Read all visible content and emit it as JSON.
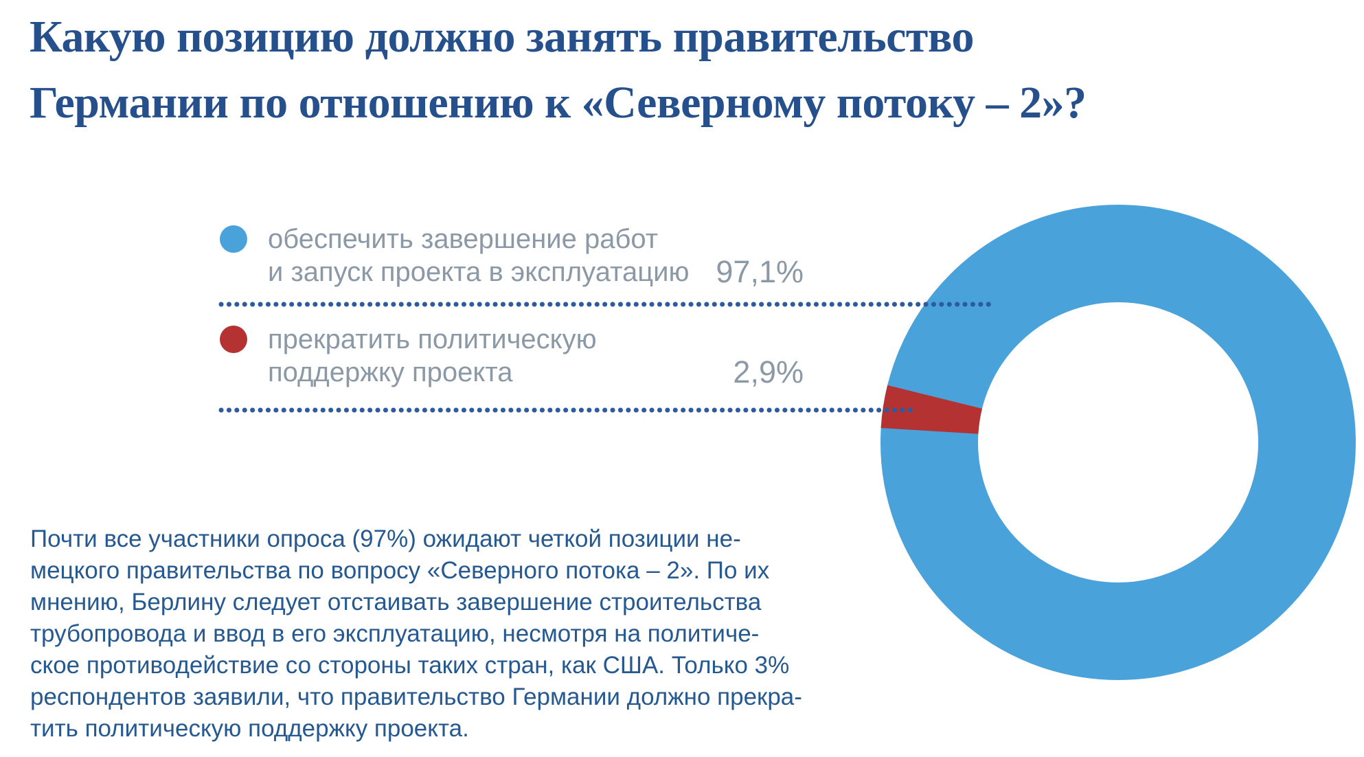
{
  "title": {
    "lines": [
      "Какую позицию должно занять правительство",
      "Германии по отношению к «Северному потоку – 2»?"
    ]
  },
  "legend": {
    "items": [
      {
        "marker": "circle",
        "color": "#4AA2DA",
        "label_lines": [
          "обеспечить завершение работ",
          "и запуск проекта в эксплуатацию"
        ],
        "value": "97,1%"
      },
      {
        "marker": "circle",
        "color": "#B43231",
        "label_lines": [
          "прекратить политическую",
          "поддержку проекта"
        ],
        "value": "2,9%"
      }
    ]
  },
  "body": {
    "lines": [
      "Почти все участники опроса (97%) ожидают четкой позиции не-",
      "мецкого правительства по вопросу «Северного потока – 2». По их",
      "мнению, Берлину следует отстаивать завершение строительства",
      "трубопровода и ввод в его эксплуатацию, несмотря на политиче-",
      "ское противодействие со стороны таких стран, как США. Только 3%",
      "респондентов заявили, что правительство Германии должно прекра-",
      "тить политическую поддержку проекта."
    ]
  },
  "chart_data": {
    "type": "pie",
    "subtype": "donut",
    "title": "Какую позицию должно занять правительство Германии по отношению к «Северному потоку – 2»?",
    "categories": [
      "обеспечить завершение работ и запуск проекта в эксплуатацию",
      "прекратить политическую поддержку проекта"
    ],
    "values": [
      97.1,
      2.9
    ],
    "value_labels": [
      "97,1%",
      "2,9%"
    ],
    "colors": [
      "#4AA2DA",
      "#B43231"
    ],
    "legend_position": "left",
    "grid": "off",
    "donut_hole_ratio": 0.59,
    "small_slice_mid_angle_deg": 171.3,
    "leader_line_style": "dotted"
  },
  "colors": {
    "title": "#25508C",
    "body_text": "#25598F",
    "legend_label": "#8B98A6",
    "leader_dots": "#2C5B9E",
    "blue": "#4AA2DA",
    "red": "#B43231",
    "background": "#FFFFFF"
  }
}
